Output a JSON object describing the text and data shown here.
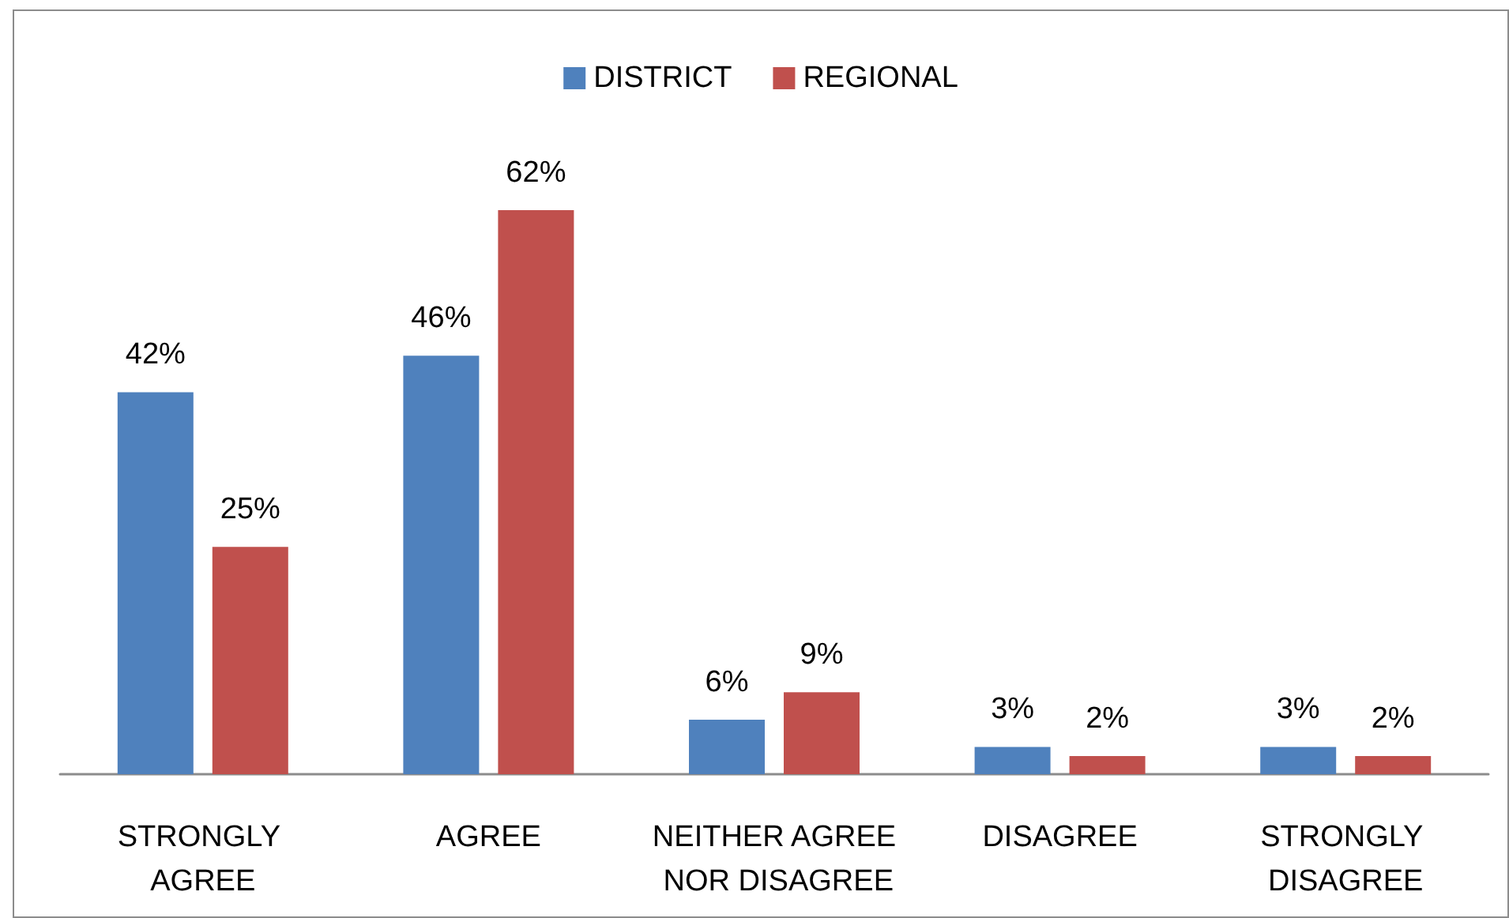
{
  "chart_data": {
    "type": "bar",
    "categories": [
      "STRONGLY AGREE",
      "AGREE",
      "NEITHER AGREE NOR DISAGREE",
      "DISAGREE",
      "STRONGLY DISAGREE"
    ],
    "series": [
      {
        "name": "DISTRICT",
        "color": "#4f81bd",
        "values": [
          42,
          46,
          6,
          3,
          3
        ],
        "value_labels": [
          "42%",
          "46%",
          "6%",
          "3%",
          "3%"
        ]
      },
      {
        "name": "REGIONAL",
        "color": "#c0504d",
        "values": [
          25,
          62,
          9,
          2,
          2
        ],
        "value_labels": [
          "25%",
          "62%",
          "9%",
          "2%",
          "2%"
        ]
      }
    ],
    "legend": "top",
    "tick_labels": "x"
  }
}
